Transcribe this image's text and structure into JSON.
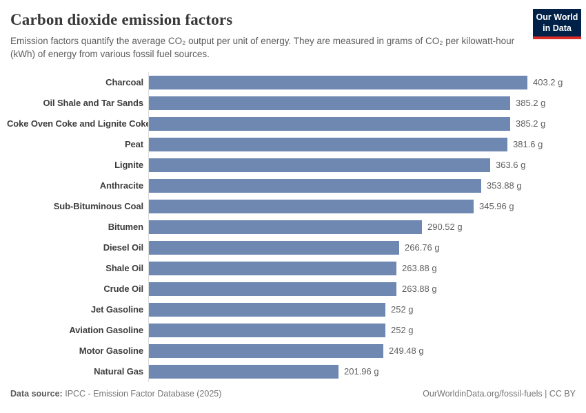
{
  "logo": {
    "line1": "Our World",
    "line2": "in Data",
    "bg_color": "#002147",
    "accent_color": "#dc2c27"
  },
  "chart_data": {
    "type": "bar",
    "orientation": "horizontal",
    "title": "Carbon dioxide emission factors",
    "subtitle": "Emission factors quantify the average CO₂ output per unit of energy. They are measured in grams of CO₂ per kilowatt-hour (kWh) of energy from various fossil fuel sources.",
    "xlabel": "",
    "ylabel": "",
    "unit": "g",
    "xlim": [
      0,
      403.2
    ],
    "grid": false,
    "legend": false,
    "bar_color": "#6e88b2",
    "categories": [
      "Charcoal",
      "Oil Shale and Tar Sands",
      "Coke Oven Coke and Lignite Coke",
      "Peat",
      "Lignite",
      "Anthracite",
      "Sub-Bituminous Coal",
      "Bitumen",
      "Diesel Oil",
      "Shale Oil",
      "Crude Oil",
      "Jet Gasoline",
      "Aviation Gasoline",
      "Motor Gasoline",
      "Natural Gas"
    ],
    "values": [
      403.2,
      385.2,
      385.2,
      381.6,
      363.6,
      353.88,
      345.96,
      290.52,
      266.76,
      263.88,
      263.88,
      252,
      252,
      249.48,
      201.96
    ],
    "value_labels": [
      "403.2 g",
      "385.2 g",
      "385.2 g",
      "381.6 g",
      "363.6 g",
      "353.88 g",
      "345.96 g",
      "290.52 g",
      "266.76 g",
      "263.88 g",
      "263.88 g",
      "252 g",
      "252 g",
      "249.48 g",
      "201.96 g"
    ]
  },
  "footer": {
    "datasource_label": "Data source:",
    "datasource_text": "IPCC - Emission Factor Database (2025)",
    "credit": "OurWorldinData.org/fossil-fuels | CC BY"
  }
}
